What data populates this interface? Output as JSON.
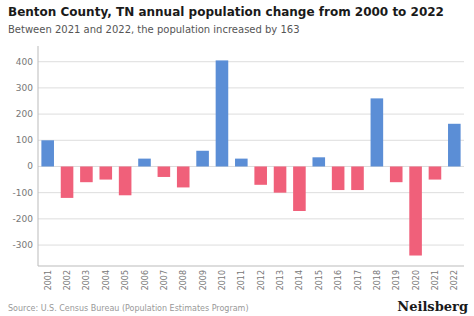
{
  "chart_data": {
    "type": "bar",
    "title": "Benton County, TN annual population change from 2000 to 2022",
    "subtitle": "Between 2021 and 2022, the population increased by 163",
    "annotations": [
      "Source: U.S. Census Bureau (Population Estimates Program)",
      "Neilsberg"
    ],
    "categories": [
      "2001",
      "2002",
      "2003",
      "2004",
      "2005",
      "2006",
      "2007",
      "2008",
      "2009",
      "2010",
      "2011",
      "2012",
      "2013",
      "2014",
      "2015",
      "2016",
      "2017",
      "2018",
      "2019",
      "2020",
      "2021",
      "2022"
    ],
    "values": [
      100,
      -120,
      -60,
      -50,
      -110,
      30,
      -40,
      -80,
      60,
      405,
      30,
      -70,
      -100,
      -170,
      35,
      -90,
      -90,
      260,
      -60,
      -340,
      -50,
      163
    ],
    "colors": [
      "#5b8ed6",
      "#f0607a",
      "#f0607a",
      "#f0607a",
      "#f0607a",
      "#5b8ed6",
      "#f0607a",
      "#f0607a",
      "#5b8ed6",
      "#5b8ed6",
      "#5b8ed6",
      "#f0607a",
      "#f0607a",
      "#f0607a",
      "#5b8ed6",
      "#f0607a",
      "#f0607a",
      "#5b8ed6",
      "#f0607a",
      "#f0607a",
      "#f0607a",
      "#5b8ed6"
    ],
    "ylim": [
      -380,
      460
    ],
    "yticks": [
      -300,
      -200,
      -100,
      0,
      100,
      200,
      300,
      400
    ],
    "grid": true
  }
}
